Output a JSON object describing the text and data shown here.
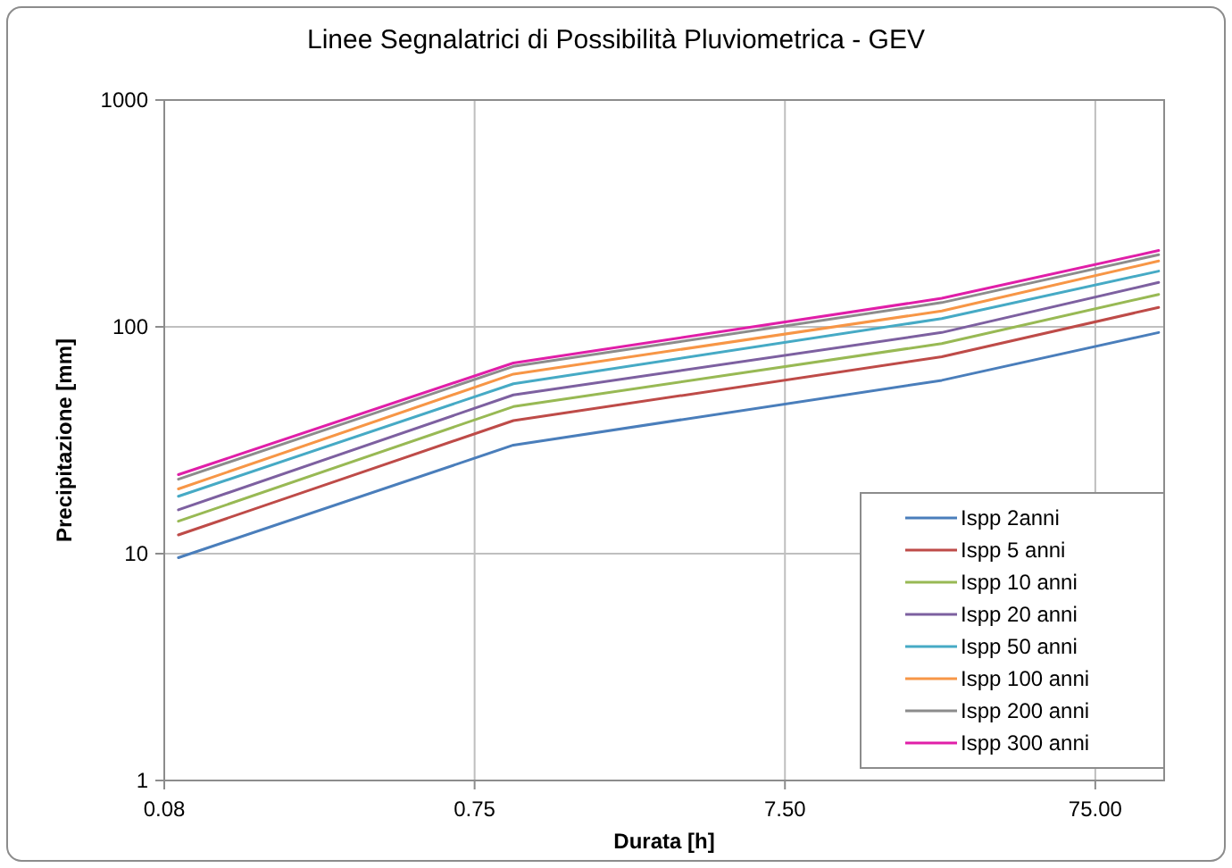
{
  "chart_data": {
    "type": "line",
    "title": "Linee Segnalatrici di Possibilità Pluviometrica - GEV",
    "xlabel": "Durata [h]",
    "ylabel": "Precipitazione [mm]",
    "log": "xy",
    "grid": true,
    "legend": "bottom right",
    "marker": "none",
    "line_style": "solid",
    "x": [
      0.0833,
      1,
      24,
      120
    ],
    "xlim": [
      0.075,
      125
    ],
    "xticks": [
      {
        "value": 0.075,
        "label": "0.08"
      },
      0.75,
      {
        "value": 7.5,
        "label": "7.50"
      },
      {
        "value": 75,
        "label": "75.00"
      }
    ],
    "ylim": [
      1,
      1000
    ],
    "yticks": [
      1,
      10,
      100,
      1000
    ],
    "series": [
      {
        "name": "Ispp 2anni",
        "color": "#4a7ebb",
        "values": [
          9.6,
          30.1,
          58.1,
          94.4
        ]
      },
      {
        "name": "Ispp 5 anni",
        "color": "#be4b48",
        "values": [
          12.1,
          38.6,
          73.8,
          121.8
        ]
      },
      {
        "name": "Ispp 10 anni",
        "color": "#98b954",
        "values": [
          13.9,
          44.5,
          84.4,
          139
        ]
      },
      {
        "name": "Ispp 20 anni",
        "color": "#7d60a0",
        "values": [
          15.6,
          50.1,
          94.4,
          157
        ]
      },
      {
        "name": "Ispp 50 anni",
        "color": "#46aac5",
        "values": [
          17.9,
          56.1,
          108.8,
          176
        ]
      },
      {
        "name": "Ispp 100 anni",
        "color": "#f79646",
        "values": [
          19.3,
          61.9,
          117.5,
          195
        ]
      },
      {
        "name": "Ispp 200 anni",
        "color": "#8c8c8c",
        "values": [
          21.3,
          66.9,
          127.9,
          208
        ]
      },
      {
        "name": "Ispp 300 anni",
        "color": "#e01ea8",
        "values": [
          22.3,
          69.3,
          133.6,
          217
        ]
      }
    ]
  }
}
